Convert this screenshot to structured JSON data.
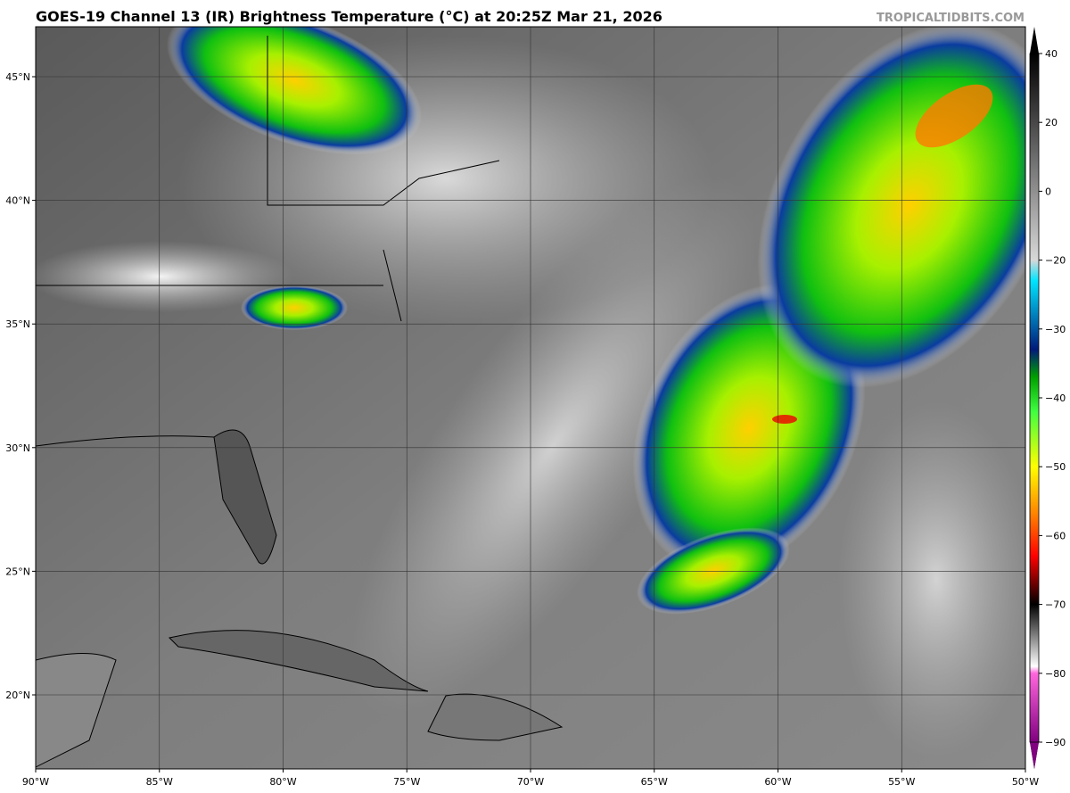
{
  "header": {
    "title": "GOES-19 Channel 13 (IR) Brightness Temperature (°C) at 20:25Z Mar 21, 2026",
    "watermark": "TROPICALTIDBITS.COM"
  },
  "map": {
    "lon_labels": [
      "90°W",
      "85°W",
      "80°W",
      "75°W",
      "70°W",
      "65°W",
      "60°W",
      "55°W",
      "50°W"
    ],
    "lat_labels": [
      "45°N",
      "40°N",
      "35°N",
      "30°N",
      "25°N",
      "20°N"
    ]
  },
  "colorbar": {
    "labels": [
      "40",
      "20",
      "0",
      "−20",
      "−30",
      "−40",
      "−50",
      "−60",
      "−70",
      "−80",
      "−90"
    ]
  }
}
